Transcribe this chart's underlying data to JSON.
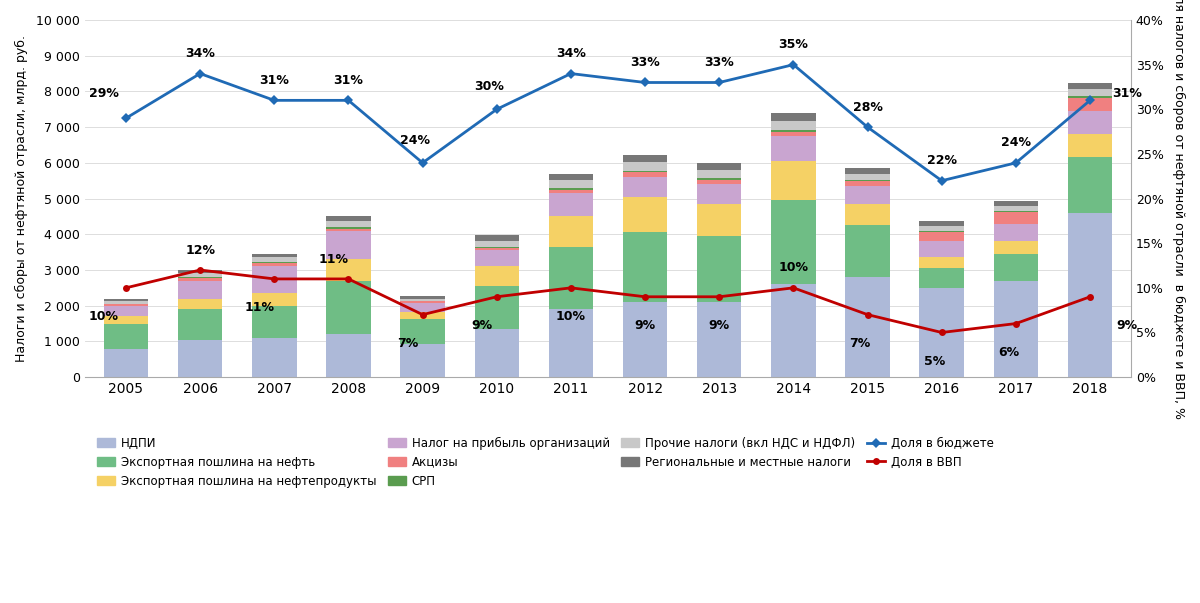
{
  "years": [
    2005,
    2006,
    2007,
    2008,
    2009,
    2010,
    2011,
    2012,
    2013,
    2014,
    2015,
    2016,
    2017,
    2018
  ],
  "ndpi": [
    800,
    1050,
    1100,
    1200,
    920,
    1350,
    1900,
    2100,
    2100,
    2600,
    2800,
    2500,
    2700,
    4600
  ],
  "export_oil": [
    700,
    850,
    900,
    1500,
    700,
    1200,
    1750,
    1950,
    1850,
    2350,
    1450,
    550,
    750,
    1550
  ],
  "export_petrol": [
    200,
    300,
    350,
    600,
    200,
    550,
    850,
    1000,
    900,
    1100,
    600,
    300,
    350,
    650
  ],
  "profit_tax": [
    280,
    500,
    750,
    800,
    250,
    450,
    650,
    550,
    550,
    700,
    500,
    450,
    500,
    650
  ],
  "excise": [
    60,
    80,
    100,
    60,
    50,
    60,
    100,
    130,
    120,
    120,
    130,
    270,
    330,
    370
  ],
  "srp": [
    20,
    30,
    30,
    30,
    10,
    30,
    40,
    45,
    45,
    45,
    40,
    30,
    30,
    50
  ],
  "other_taxes": [
    80,
    110,
    130,
    170,
    70,
    170,
    220,
    250,
    230,
    260,
    170,
    140,
    130,
    200
  ],
  "regional_taxes": [
    60,
    80,
    90,
    150,
    70,
    160,
    180,
    200,
    200,
    220,
    160,
    130,
    150,
    175
  ],
  "share_budget": [
    29,
    34,
    31,
    31,
    24,
    30,
    34,
    33,
    33,
    35,
    28,
    22,
    24,
    31
  ],
  "share_gdp": [
    10,
    12,
    11,
    11,
    7,
    9,
    10,
    9,
    9,
    10,
    7,
    5,
    6,
    9
  ],
  "color_ndpi": "#adb9d8",
  "color_export_oil": "#6fbd85",
  "color_export_petrol": "#f5d165",
  "color_profit_tax": "#c9a5d0",
  "color_excise": "#f08080",
  "color_srp": "#5a9c4f",
  "color_other_taxes": "#c8c8c8",
  "color_regional": "#777777",
  "color_line_budget": "#1f6ab5",
  "color_line_gdp": "#c00000",
  "ylabel_left": "Налоги и сборы от нефтяной отрасли, млрд. руб.",
  "ylabel_right": "Доля налогов и сборов от нефтяной отрасли  в бюджете и ВВП, %",
  "legend_ndpi": "НДПИ",
  "legend_export_oil": "Экспортная пошлина на нефть",
  "legend_export_petrol": "Экспортная пошлина на нефтепродукты",
  "legend_profit_tax": "Налог на прибыль организаций",
  "legend_excise": "Акцизы",
  "legend_srp": "СРП",
  "legend_other": "Прочие налоги (вкл НДС и НДФЛ)",
  "legend_regional": "Региональные и местные налоги",
  "legend_budget": "Доля в бюджете",
  "legend_gdp": "Доля в ВВП",
  "ylim_left": [
    0,
    10000
  ],
  "ylim_right": [
    0,
    40
  ],
  "yticks_left": [
    0,
    1000,
    2000,
    3000,
    4000,
    5000,
    6000,
    7000,
    8000,
    9000,
    10000
  ],
  "yticks_right_pct": [
    0,
    5,
    10,
    15,
    20,
    25,
    30,
    35,
    40
  ]
}
